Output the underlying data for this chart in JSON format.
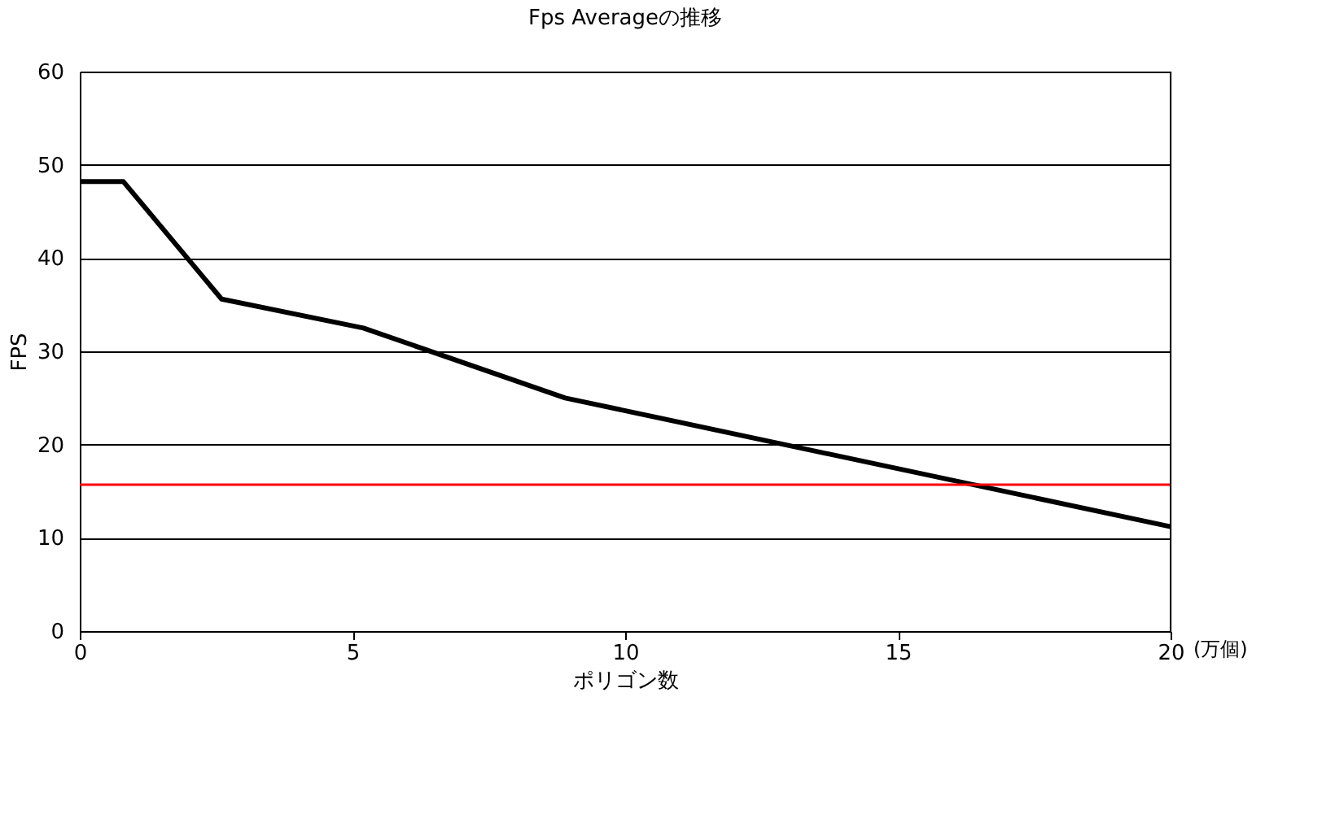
{
  "chart_data": {
    "type": "line",
    "title": "Fps Averageの推移",
    "xlabel": "ポリゴン数",
    "ylabel": "FPS",
    "x": [
      0,
      0.8,
      2.6,
      5.2,
      8.9,
      20
    ],
    "series": [
      {
        "color": "#000000",
        "values": [
          48.2,
          48.2,
          35.6,
          32.5,
          25,
          11.2
        ]
      }
    ],
    "xlim": [
      0,
      20
    ],
    "xticks": [
      0,
      5,
      10,
      15,
      20
    ],
    "ylim": [
      0,
      60
    ],
    "yticks": [
      0,
      10,
      20,
      30,
      40,
      50,
      60
    ],
    "grid": "y",
    "marker": "none",
    "line_style": "solid",
    "ref_lines": [
      {
        "axis": "y",
        "value": 15.7,
        "color": "#ff0000"
      }
    ],
    "annotations": [
      "(万個)"
    ]
  }
}
